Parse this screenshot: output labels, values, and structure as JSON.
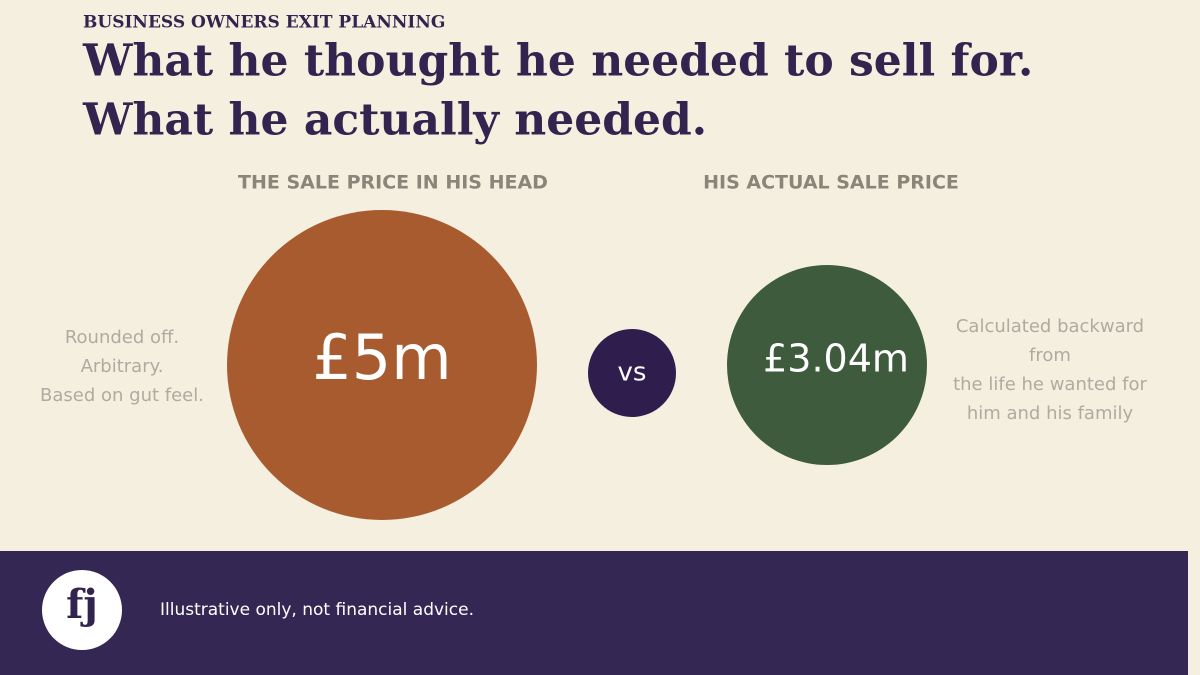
{
  "header": {
    "eyebrow": "BUSINESS OWNERS EXIT PLANNING",
    "title": [
      "What he thought he needed to sell for.",
      "What he actually needed."
    ]
  },
  "comparison": {
    "left": {
      "heading": "THE SALE PRICE IN HIS HEAD",
      "value": "£5m",
      "notes": [
        "Rounded off.",
        "Arbitrary.",
        "Based on gut feel."
      ]
    },
    "separator": "vs",
    "right": {
      "heading": "HIS ACTUAL SALE PRICE",
      "value": "£3.04m",
      "notes": [
        "Calculated backward",
        "from",
        "the life he wanted for",
        "him and his family"
      ]
    }
  },
  "footer": {
    "logo": "fj",
    "note": "Illustrative only, not financial advice."
  }
}
